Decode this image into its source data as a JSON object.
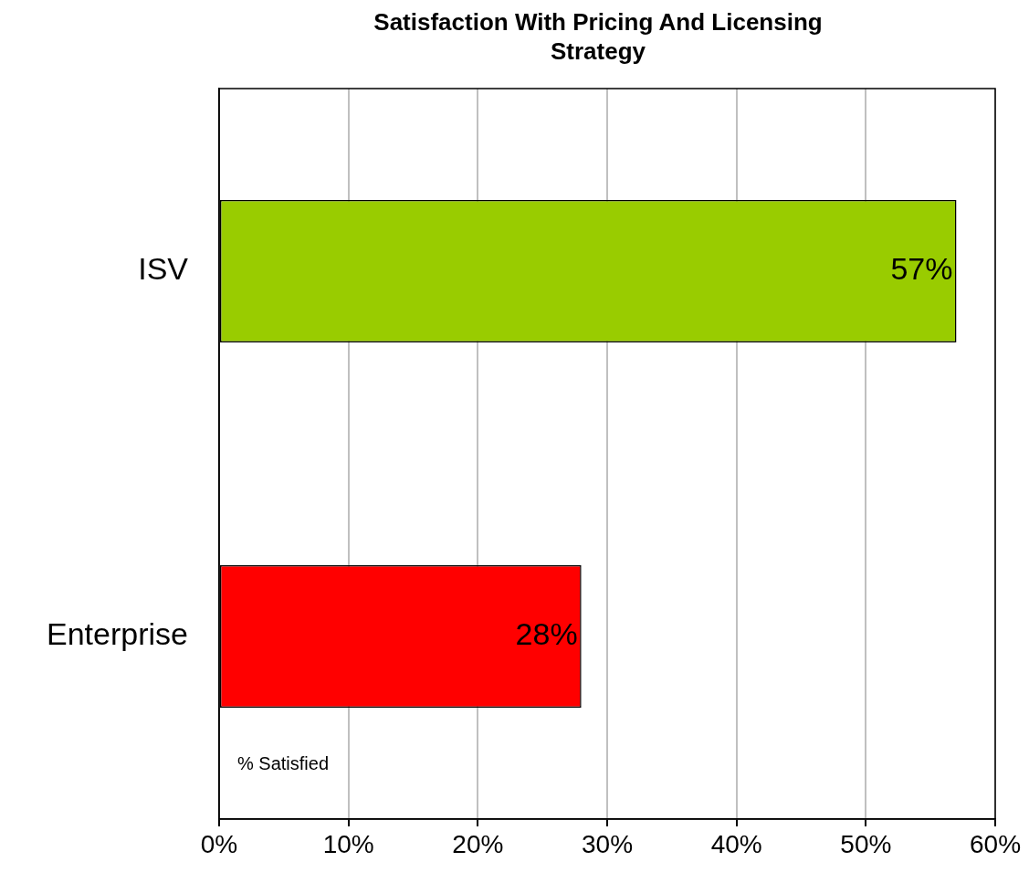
{
  "chart_data": {
    "type": "bar",
    "orientation": "horizontal",
    "title": "Satisfaction With Pricing And Licensing Strategy",
    "categories": [
      "ISV",
      "Enterprise"
    ],
    "values": [
      57,
      28
    ],
    "colors": [
      "#99cc00",
      "#ff0000"
    ],
    "value_labels": [
      "57%",
      "28%"
    ],
    "xlim": [
      0,
      60
    ],
    "xticks": [
      {
        "value": 0,
        "label": "0%"
      },
      {
        "value": 10,
        "label": "10%"
      },
      {
        "value": 20,
        "label": "20%"
      },
      {
        "value": 30,
        "label": "30%"
      },
      {
        "value": 40,
        "label": "40%"
      },
      {
        "value": 50,
        "label": "50%"
      },
      {
        "value": 60,
        "label": "60%"
      }
    ],
    "grid": "x",
    "legend": false,
    "annotations": [
      "% Satisfied"
    ]
  }
}
